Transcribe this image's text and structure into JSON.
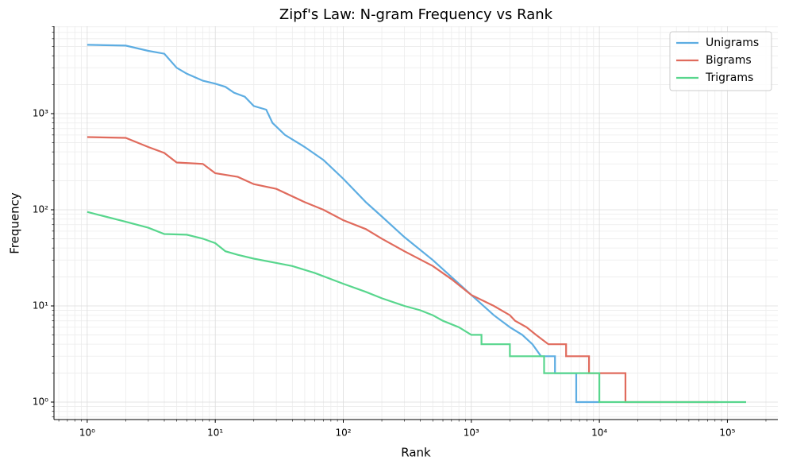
{
  "chart_data": {
    "type": "line",
    "title": "Zipf's Law: N-gram Frequency vs Rank",
    "x_label": "Rank",
    "y_label": "Frequency",
    "log_x": true,
    "log_y": true,
    "grid": true,
    "minor_grid": true,
    "legend": "upper right",
    "xlim": [
      0.55,
      247800
    ],
    "ylim": [
      0.658,
      8110
    ],
    "xticks": [
      {
        "value": 1,
        "label": "10⁰"
      },
      {
        "value": 10,
        "label": "10¹"
      },
      {
        "value": 100,
        "label": "10²"
      },
      {
        "value": 1000,
        "label": "10³"
      },
      {
        "value": 10000,
        "label": "10⁴"
      },
      {
        "value": 100000,
        "label": "10⁵"
      }
    ],
    "yticks": [
      {
        "value": 1,
        "label": "10⁰"
      },
      {
        "value": 10,
        "label": "10¹"
      },
      {
        "value": 100,
        "label": "10²"
      },
      {
        "value": 1000,
        "label": "10³"
      }
    ],
    "series": [
      {
        "name": "Unigrams",
        "color": "#5dade2",
        "x": [
          1,
          2,
          3,
          4,
          5,
          6,
          8,
          10,
          12,
          14,
          17,
          20,
          25,
          28,
          35,
          50,
          70,
          100,
          150,
          200,
          300,
          500,
          700,
          1000,
          1500,
          2000,
          2500,
          3000,
          3500,
          4500,
          4500,
          6600,
          6600,
          10000
        ],
        "values": [
          5200,
          5100,
          4500,
          4200,
          3000,
          2600,
          2200,
          2050,
          1900,
          1650,
          1500,
          1200,
          1100,
          800,
          600,
          450,
          330,
          210,
          120,
          85,
          52,
          30,
          20,
          13,
          8,
          6,
          5,
          4,
          3,
          3,
          2,
          2,
          1,
          1
        ]
      },
      {
        "name": "Bigrams",
        "color": "#e06b5d",
        "x": [
          1,
          2,
          3,
          4,
          5,
          8,
          10,
          15,
          20,
          30,
          50,
          70,
          100,
          150,
          200,
          300,
          500,
          700,
          1000,
          1500,
          2000,
          2200,
          2700,
          3200,
          4000,
          5500,
          5500,
          8300,
          8300,
          16000,
          16000,
          85000
        ],
        "values": [
          570,
          560,
          450,
          390,
          310,
          300,
          240,
          220,
          185,
          165,
          120,
          100,
          78,
          63,
          50,
          37,
          26,
          19,
          13,
          10,
          8,
          7,
          6,
          5,
          4,
          4,
          3,
          3,
          2,
          2,
          1,
          1
        ]
      },
      {
        "name": "Trigrams",
        "color": "#58d68d",
        "x": [
          1,
          2,
          3,
          4,
          6,
          8,
          10,
          12,
          15,
          20,
          30,
          40,
          60,
          100,
          150,
          200,
          300,
          400,
          500,
          600,
          800,
          1000,
          1200,
          1200,
          2000,
          2000,
          3700,
          3700,
          10000,
          10000,
          140000
        ],
        "values": [
          95,
          75,
          65,
          56,
          55,
          50,
          45,
          37,
          34,
          31,
          28,
          26,
          22,
          17,
          14,
          12,
          10,
          9,
          8,
          7,
          6,
          5,
          5,
          4,
          4,
          3,
          3,
          2,
          2,
          1,
          1
        ]
      }
    ]
  }
}
